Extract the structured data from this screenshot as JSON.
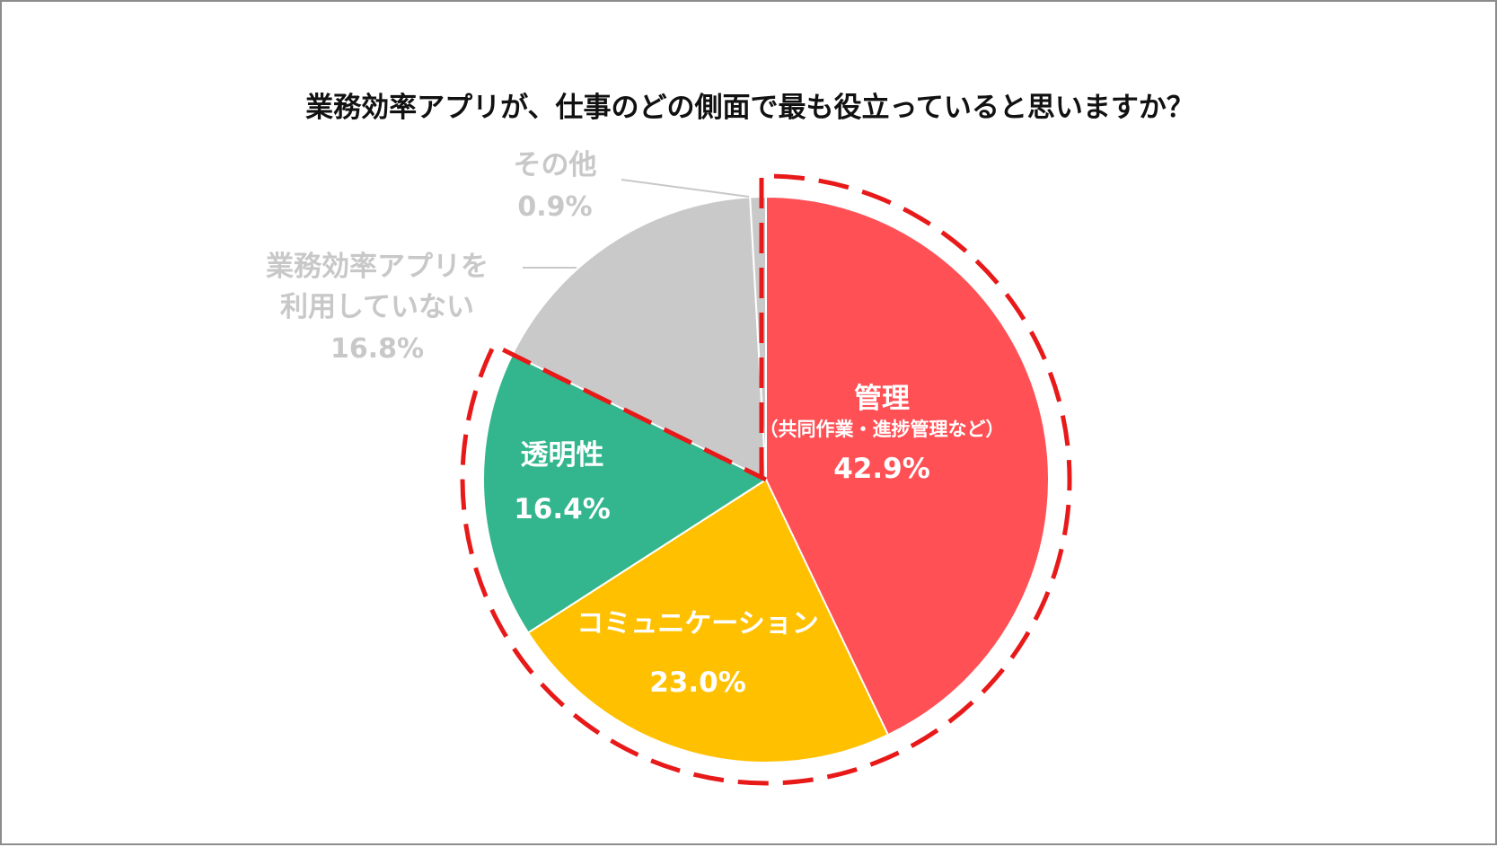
{
  "chart_data": {
    "type": "pie",
    "title": "業務効率アプリが、仕事のどの側面で最も役立っていると思いますか？",
    "start": "top",
    "direction": "clockwise",
    "slices": [
      {
        "label": "管理",
        "sublabel": "（共同作業・進捗管理など）",
        "value": 42.9,
        "value_label": "42.9%",
        "color": "#ff5055",
        "label_position": "inside"
      },
      {
        "label": "コミュニケーション",
        "value": 23.0,
        "value_label": "23.0%",
        "color": "#ffc000",
        "label_position": "inside"
      },
      {
        "label": "透明性",
        "value": 16.4,
        "value_label": "16.4%",
        "color": "#33b68d",
        "label_position": "inside"
      },
      {
        "label_lines": [
          "業務効率アプリを",
          "利用していない"
        ],
        "value": 16.8,
        "value_label": "16.8%",
        "color": "#c9c9c9",
        "label_position": "outside"
      },
      {
        "label": "その他",
        "value": 0.9,
        "value_label": "0.9%",
        "color": "#c9c9c9",
        "label_position": "outside"
      }
    ],
    "highlight": {
      "style": "dashed",
      "color": "#e81919",
      "covers": [
        "管理",
        "コミュニケーション",
        "透明性"
      ]
    }
  }
}
